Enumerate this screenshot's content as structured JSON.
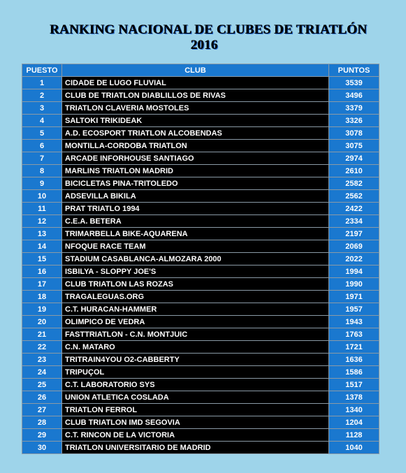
{
  "title": {
    "line1": "RANKING NACIONAL  DE CLUBES DE TRIATLÓN",
    "line2": "2016"
  },
  "table": {
    "headers": [
      "PUESTO",
      "CLUB",
      "PUNTOS"
    ],
    "rows": [
      [
        "1",
        "CIDADE DE LUGO FLUVIAL",
        "3539"
      ],
      [
        "2",
        "CLUB DE TRIATLON DIABLILLOS DE RIVAS",
        "3496"
      ],
      [
        "3",
        "TRIATLON CLAVERIA MOSTOLES",
        "3379"
      ],
      [
        "4",
        "SALTOKI TRIKIDEAK",
        "3326"
      ],
      [
        "5",
        "A.D. ECOSPORT TRIATLON ALCOBENDAS",
        "3078"
      ],
      [
        "6",
        "MONTILLA-CORDOBA TRIATLON",
        "3075"
      ],
      [
        "7",
        "ARCADE INFORHOUSE SANTIAGO",
        "2974"
      ],
      [
        "8",
        "MARLINS TRIATLON MADRID",
        "2610"
      ],
      [
        "9",
        "BICICLETAS PINA-TRITOLEDO",
        "2582"
      ],
      [
        "10",
        "ADSEVILLA BIKILA",
        "2562"
      ],
      [
        "11",
        "PRAT TRIATLO 1994",
        "2422"
      ],
      [
        "12",
        "C.E.A. BETERA",
        "2334"
      ],
      [
        "13",
        "TRIMARBELLA BIKE-AQUARENA",
        "2197"
      ],
      [
        "14",
        "NFOQUE RACE TEAM",
        "2069"
      ],
      [
        "15",
        "STADIUM CASABLANCA-ALMOZARA 2000",
        "2022"
      ],
      [
        "16",
        "ISBILYA - SLOPPY JOE'S",
        "1994"
      ],
      [
        "17",
        "CLUB TRIATLON LAS ROZAS",
        "1990"
      ],
      [
        "18",
        "TRAGALEGUAS.ORG",
        "1971"
      ],
      [
        "19",
        "C.T. HURACAN-HAMMER",
        "1957"
      ],
      [
        "20",
        "OLIMPICO DE VEDRA",
        "1943"
      ],
      [
        "21",
        "FASTTRIATLON - C.N. MONTJUIC",
        "1763"
      ],
      [
        "22",
        "C.N. MATARO",
        "1721"
      ],
      [
        "23",
        "TRITRAIN4YOU O2-CABBERTY",
        "1636"
      ],
      [
        "24",
        "TRIPUÇOL",
        "1586"
      ],
      [
        "25",
        "C.T. LABORATORIO SYS",
        "1517"
      ],
      [
        "26",
        "UNION ATLETICA COSLADA",
        "1378"
      ],
      [
        "27",
        "TRIATLON FERROL",
        "1340"
      ],
      [
        "28",
        "CLUB TRIATLON IMD SEGOVIA",
        "1204"
      ],
      [
        "29",
        "C.T. RINCON DE LA VICTORIA",
        "1128"
      ],
      [
        "30",
        "TRIATLON UNIVERSITARIO DE MADRID",
        "1040"
      ]
    ]
  },
  "colors": {
    "background": "#9ed4ea",
    "header_fill": "#1a78cf",
    "club_fill": "#000000",
    "text": "#ffffff"
  }
}
